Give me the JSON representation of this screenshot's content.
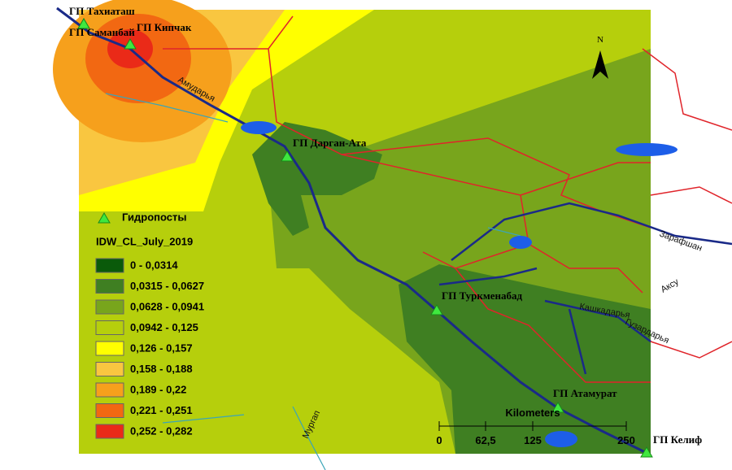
{
  "stations": [
    {
      "label": "ГП Тахиаташ"
    },
    {
      "label": "ГП Саманбай"
    },
    {
      "label": "ГП Кипчак"
    },
    {
      "label": "ГП Дарган-Ата"
    },
    {
      "label": "ГП Туркменабад"
    },
    {
      "label": "ГП Атамурат"
    },
    {
      "label": "ГП Келиф"
    }
  ],
  "legend": {
    "station_label": "Гидропосты",
    "title": "IDW_CL_July_2019",
    "classes": [
      {
        "label": "0 - 0,0314",
        "color": "#0a5a0a"
      },
      {
        "label": "0,0315 - 0,0627",
        "color": "#3f7f22"
      },
      {
        "label": "0,0628 - 0,0941",
        "color": "#78a51c"
      },
      {
        "label": "0,0942 - 0,125",
        "color": "#b6cf0c"
      },
      {
        "label": "0,126 - 0,157",
        "color": "#ffff00"
      },
      {
        "label": "0,158 - 0,188",
        "color": "#f9c640"
      },
      {
        "label": "0,189 - 0,22",
        "color": "#f6a01c"
      },
      {
        "label": "0,221 - 0,251",
        "color": "#f26812"
      },
      {
        "label": "0,252 - 0,282",
        "color": "#ea2a18"
      }
    ]
  },
  "scale": {
    "title": "Kilometers",
    "ticks": [
      "0",
      "62,5",
      "125",
      "250"
    ]
  },
  "rivers": [
    "Амударья",
    "Мургап",
    "Зарафшан",
    "Кашкадарья",
    "Гузардарья",
    "Аксу"
  ],
  "north": "N"
}
